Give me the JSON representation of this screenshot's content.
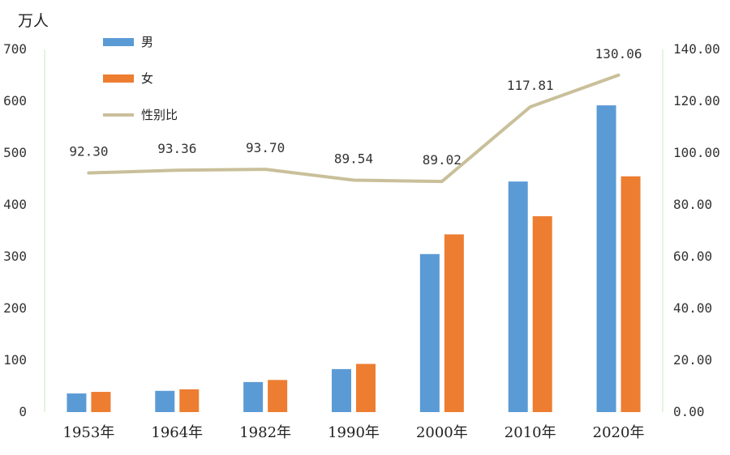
{
  "chart_data": {
    "type": "bar",
    "categories": [
      "1953年",
      "1964年",
      "1982年",
      "1990年",
      "2000年",
      "2010年",
      "2020年"
    ],
    "series": [
      {
        "name": "男",
        "type": "bar",
        "axis": "left",
        "color": "#5B9BD5",
        "values": [
          36,
          41,
          58,
          83,
          305,
          445,
          592
        ]
      },
      {
        "name": "女",
        "type": "bar",
        "axis": "left",
        "color": "#ED7D31",
        "values": [
          39,
          44,
          62,
          93,
          343,
          378,
          455
        ]
      },
      {
        "name": "性别比",
        "type": "line",
        "axis": "right",
        "color": "#C9BF9A",
        "values": [
          92.3,
          93.36,
          93.7,
          89.54,
          89.02,
          117.81,
          130.06
        ],
        "labels": [
          "92.30",
          "93.36",
          "93.70",
          "89.54",
          "89.02",
          "117.81",
          "130.06"
        ]
      }
    ],
    "ylabel": "万人",
    "ylim": [
      0,
      700
    ],
    "yticks": [
      "0",
      "100",
      "200",
      "300",
      "400",
      "500",
      "600",
      "700"
    ],
    "y2lim": [
      0,
      140
    ],
    "y2ticks": [
      "0.00",
      "20.00",
      "40.00",
      "60.00",
      "80.00",
      "100.00",
      "120.00",
      "140.00"
    ],
    "grid": false,
    "legend": "top-left",
    "axis_line_color": "#C9E9C1"
  }
}
